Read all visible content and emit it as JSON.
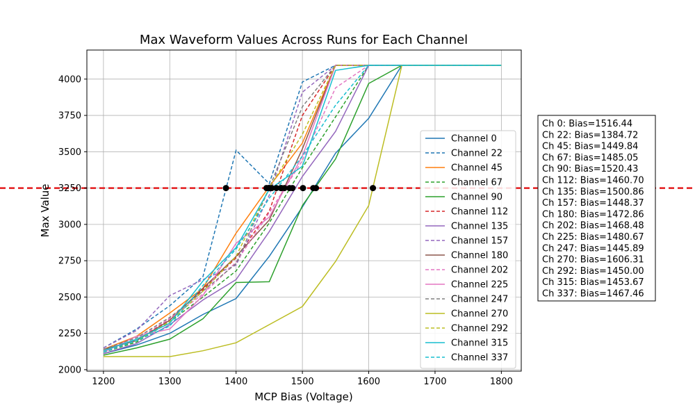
{
  "chart_data": {
    "type": "line",
    "title": "Max Waveform Values Across Runs for Each Channel",
    "xlabel": "MCP Bias (Voltage)",
    "ylabel": "Max Value",
    "xlim": [
      1175,
      1830
    ],
    "ylim": [
      1990,
      4200
    ],
    "xticks": [
      1200,
      1300,
      1400,
      1500,
      1600,
      1700,
      1800
    ],
    "yticks": [
      2000,
      2250,
      2500,
      2750,
      3000,
      3250,
      3500,
      3750,
      4000
    ],
    "grid": true,
    "legend_position": "center-right",
    "threshold": {
      "value": 3250,
      "color": "#e31a1c",
      "style": "dashed"
    },
    "x": [
      1200,
      1250,
      1300,
      1350,
      1400,
      1450,
      1500,
      1550,
      1600,
      1650,
      1700,
      1750,
      1800
    ],
    "series": [
      {
        "name": "Channel 0",
        "color": "#1f77b4",
        "dashed": false,
        "values": [
          2110,
          2170,
          2250,
          2380,
          2490,
          2780,
          3120,
          3490,
          3730,
          4095,
          4095,
          4095,
          4095
        ]
      },
      {
        "name": "Channel 22",
        "color": "#1f77b4",
        "dashed": true,
        "values": [
          2150,
          2280,
          2440,
          2640,
          3510,
          3280,
          3980,
          4095,
          4095,
          4095,
          4095,
          4095,
          4095
        ]
      },
      {
        "name": "Channel 45",
        "color": "#ff7f0e",
        "dashed": false,
        "values": [
          2140,
          2230,
          2390,
          2560,
          2940,
          3260,
          3560,
          4095,
          4095,
          4095,
          4095,
          4095,
          4095
        ]
      },
      {
        "name": "Channel 67",
        "color": "#2ca02c",
        "dashed": true,
        "values": [
          2120,
          2190,
          2330,
          2500,
          2680,
          3010,
          3390,
          3740,
          4095,
          4095,
          4095,
          4095,
          4095
        ]
      },
      {
        "name": "Channel 90",
        "color": "#2ca02c",
        "dashed": false,
        "values": [
          2100,
          2150,
          2210,
          2350,
          2600,
          2605,
          3130,
          3450,
          3970,
          4095,
          4095,
          4095,
          4095
        ]
      },
      {
        "name": "Channel 112",
        "color": "#d62728",
        "dashed": true,
        "values": [
          2130,
          2200,
          2350,
          2550,
          2770,
          3090,
          3750,
          4095,
          4095,
          4095,
          4095,
          4095,
          4095
        ]
      },
      {
        "name": "Channel 135",
        "color": "#9467bd",
        "dashed": false,
        "values": [
          2110,
          2180,
          2310,
          2480,
          2620,
          2950,
          3330,
          3640,
          4095,
          4095,
          4095,
          4095,
          4095
        ]
      },
      {
        "name": "Channel 157",
        "color": "#9467bd",
        "dashed": true,
        "values": [
          2150,
          2270,
          2510,
          2620,
          2720,
          3200,
          3910,
          4095,
          4095,
          4095,
          4095,
          4095,
          4095
        ]
      },
      {
        "name": "Channel 180",
        "color": "#8c564b",
        "dashed": false,
        "values": [
          2140,
          2200,
          2340,
          2560,
          2780,
          3030,
          3520,
          4095,
          4095,
          4095,
          4095,
          4095,
          4095
        ]
      },
      {
        "name": "Channel 202",
        "color": "#e377c2",
        "dashed": true,
        "values": [
          2130,
          2210,
          2350,
          2520,
          2740,
          3080,
          3440,
          3940,
          4095,
          4095,
          4095,
          4095,
          4095
        ]
      },
      {
        "name": "Channel 225",
        "color": "#e377c2",
        "dashed": false,
        "values": [
          2120,
          2230,
          2280,
          2510,
          2870,
          3050,
          3470,
          4095,
          4095,
          4095,
          4095,
          4095,
          4095
        ]
      },
      {
        "name": "Channel 247",
        "color": "#7f7f7f",
        "dashed": true,
        "values": [
          2140,
          2220,
          2360,
          2540,
          2730,
          3250,
          3810,
          4095,
          4095,
          4095,
          4095,
          4095,
          4095
        ]
      },
      {
        "name": "Channel 270",
        "color": "#bcbd22",
        "dashed": false,
        "values": [
          2090,
          2090,
          2090,
          2130,
          2185,
          2310,
          2435,
          2745,
          3130,
          4095,
          4095,
          4095,
          4095
        ]
      },
      {
        "name": "Channel 292",
        "color": "#bcbd22",
        "dashed": true,
        "values": [
          2120,
          2200,
          2330,
          2540,
          2780,
          3250,
          3620,
          4095,
          4095,
          4095,
          4095,
          4095,
          4095
        ]
      },
      {
        "name": "Channel 315",
        "color": "#17becf",
        "dashed": false,
        "values": [
          2130,
          2210,
          2320,
          2610,
          2840,
          3240,
          3400,
          4060,
          4095,
          4095,
          4095,
          4095,
          4095
        ]
      },
      {
        "name": "Channel 337",
        "color": "#17becf",
        "dashed": true,
        "values": [
          2120,
          2200,
          2300,
          2580,
          2830,
          3180,
          3470,
          3820,
          4095,
          4095,
          4095,
          4095,
          4095
        ]
      }
    ],
    "crossing_points": [
      1516.44,
      1384.72,
      1449.84,
      1485.05,
      1520.43,
      1460.7,
      1500.86,
      1448.37,
      1472.86,
      1468.48,
      1480.67,
      1445.89,
      1606.31,
      1450.0,
      1453.67,
      1467.46
    ],
    "annotation_lines": [
      "Ch 0: Bias=1516.44",
      "Ch 22: Bias=1384.72",
      "Ch 45: Bias=1449.84",
      "Ch 67: Bias=1485.05",
      "Ch 90: Bias=1520.43",
      "Ch 112: Bias=1460.70",
      "Ch 135: Bias=1500.86",
      "Ch 157: Bias=1448.37",
      "Ch 180: Bias=1472.86",
      "Ch 202: Bias=1468.48",
      "Ch 225: Bias=1480.67",
      "Ch 247: Bias=1445.89",
      "Ch 270: Bias=1606.31",
      "Ch 292: Bias=1450.00",
      "Ch 315: Bias=1453.67",
      "Ch 337: Bias=1467.46"
    ]
  }
}
